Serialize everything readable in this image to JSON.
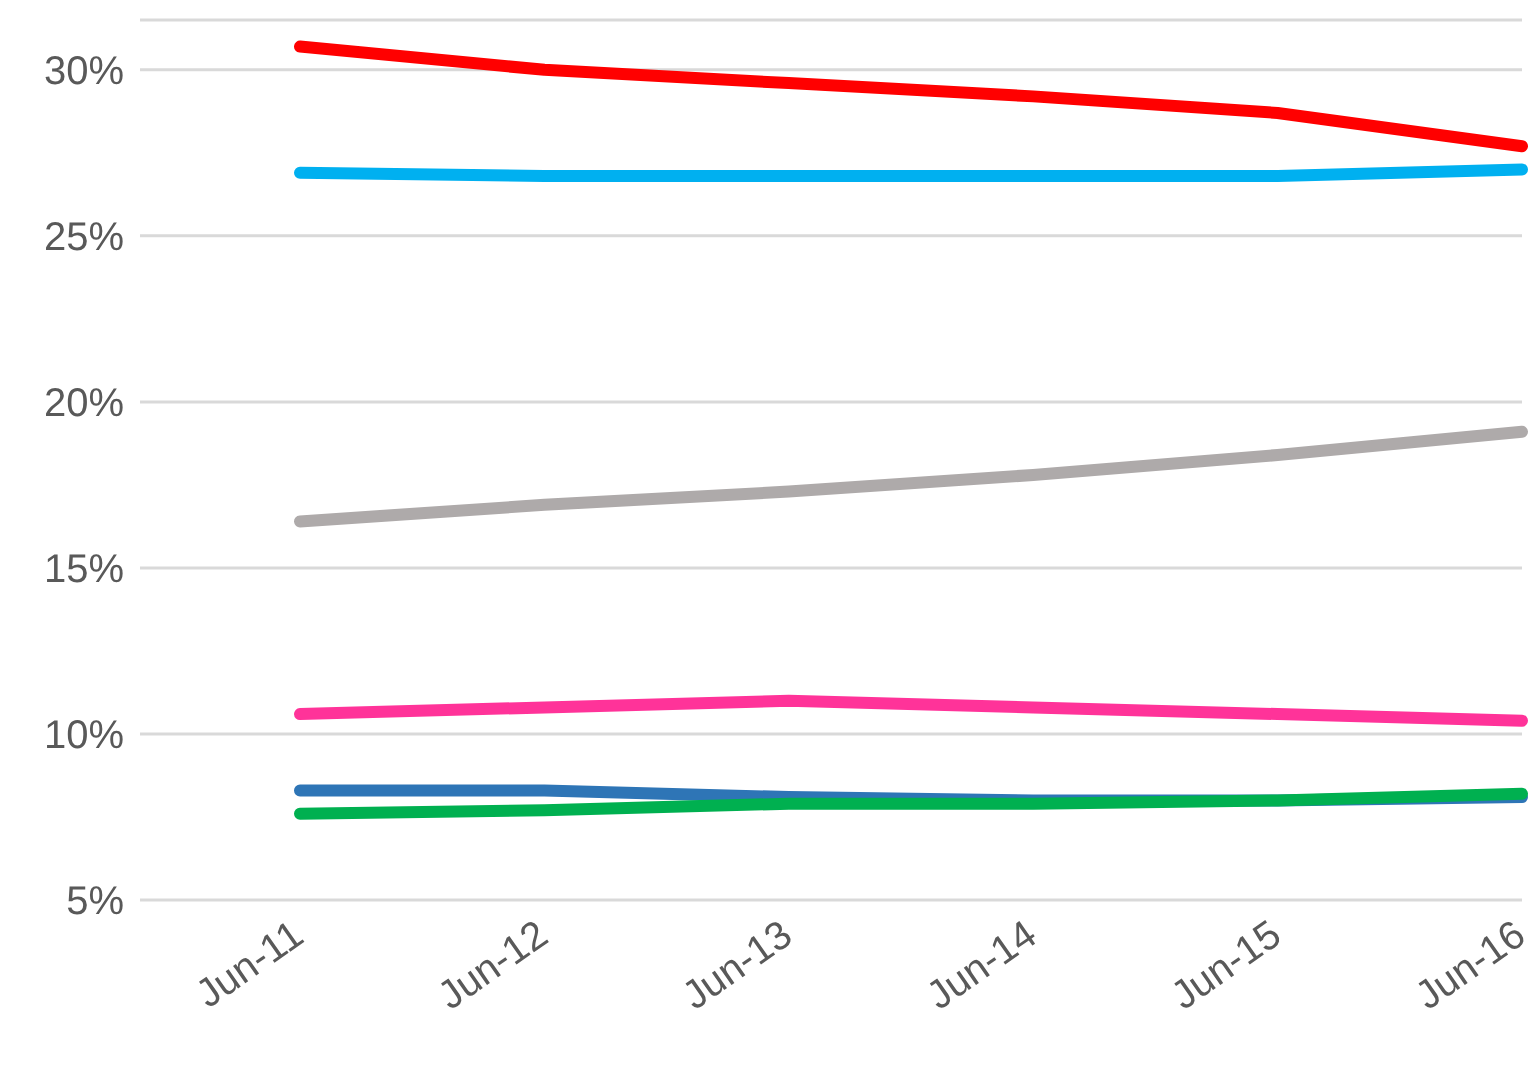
{
  "chart_data": {
    "type": "line",
    "categories": [
      "Jun-11",
      "Jun-12",
      "Jun-13",
      "Jun-14",
      "Jun-15",
      "Jun-16"
    ],
    "series": [
      {
        "color": "#ff0000",
        "values": [
          30.7,
          30.0,
          29.6,
          29.2,
          28.7,
          27.7
        ]
      },
      {
        "color": "#00b0f0",
        "values": [
          26.9,
          26.8,
          26.8,
          26.8,
          26.8,
          27.0
        ]
      },
      {
        "color": "#aeaaaa",
        "values": [
          16.4,
          16.9,
          17.3,
          17.8,
          18.4,
          19.1
        ]
      },
      {
        "color": "#ff3399",
        "values": [
          10.6,
          10.8,
          11.0,
          10.8,
          10.6,
          10.4
        ]
      },
      {
        "color": "#2e75b6",
        "values": [
          8.3,
          8.3,
          8.1,
          8.0,
          8.0,
          8.1
        ]
      },
      {
        "color": "#00b050",
        "values": [
          7.6,
          7.7,
          7.9,
          7.9,
          8.0,
          8.2
        ]
      }
    ],
    "ylim": [
      5,
      31.5
    ],
    "yticks": [
      {
        "value": 5,
        "label": "5%"
      },
      {
        "value": 10,
        "label": "10%"
      },
      {
        "value": 15,
        "label": "15%"
      },
      {
        "value": 20,
        "label": "20%"
      },
      {
        "value": 25,
        "label": "25%"
      },
      {
        "value": 30,
        "label": "30%"
      }
    ],
    "grid": "y",
    "marker": "none",
    "line_style": "solid",
    "legend": false
  }
}
